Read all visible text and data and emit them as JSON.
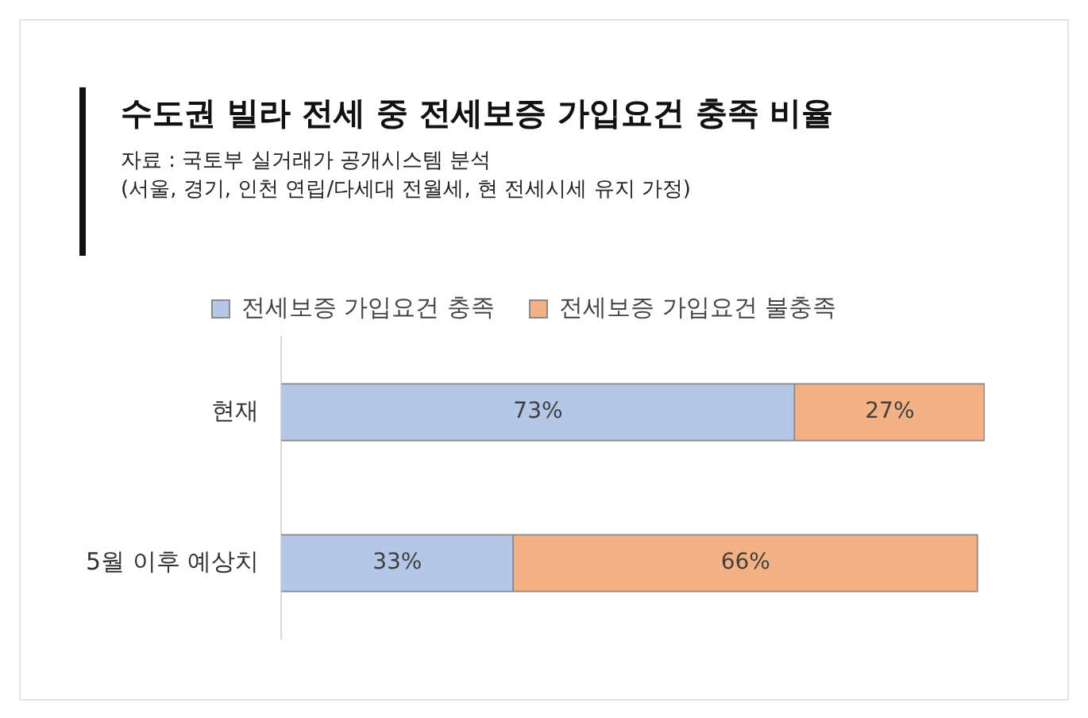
{
  "chart_data": {
    "type": "bar",
    "orientation": "horizontal",
    "stacked": true,
    "title": "수도권 빌라 전세 중 전세보증 가입요건 충족 비율",
    "subtitle": "자료 : 국토부 실거래가 공개시스템 분석",
    "annotations": [
      "(서울, 경기, 인천 연립/다세대 전월세, 현 전세시세 유지 가정)"
    ],
    "categories": [
      "현재",
      "5월 이후 예상치"
    ],
    "series": [
      {
        "name": "전세보증 가입요건 충족",
        "color": "#b4c7e7",
        "values": [
          73,
          33
        ],
        "value_labels": [
          "73%",
          "33%"
        ]
      },
      {
        "name": "전세보증 가입요건 불충족",
        "color": "#f4b183",
        "values": [
          27,
          66
        ],
        "value_labels": [
          "27%",
          "66%"
        ]
      }
    ],
    "legend": "top"
  }
}
